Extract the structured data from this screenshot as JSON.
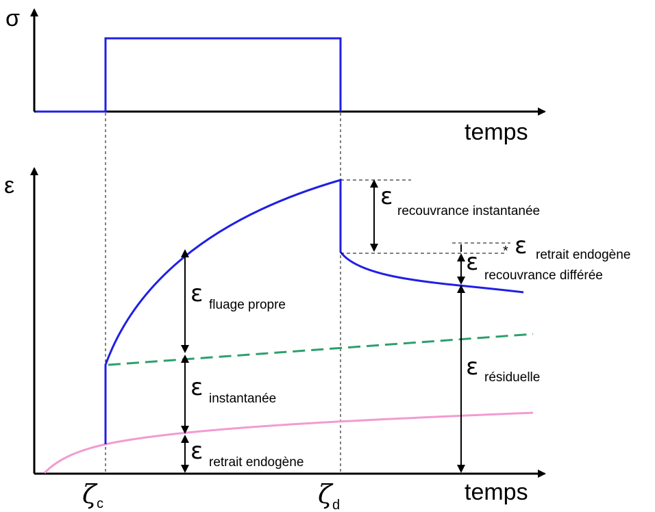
{
  "colors": {
    "stress_curve": "#1f1fe6",
    "strain_curve": "#1f1fe6",
    "dashed_instant": "#2e9e6e",
    "shrinkage_curve": "#f29bd0",
    "axes": "#000000"
  },
  "top_plot": {
    "y_axis_label": "σ",
    "x_axis_label": "temps"
  },
  "bottom_plot": {
    "y_axis_label": "ε",
    "x_axis_label": "temps"
  },
  "time_markers": {
    "load": {
      "symbol": "ζ",
      "subscript": "c"
    },
    "unload": {
      "symbol": "ζ",
      "subscript": "d"
    }
  },
  "annotations": [
    {
      "symbol": "ε",
      "label": "retrait endogène"
    },
    {
      "symbol": "ε",
      "label": "instantanée"
    },
    {
      "symbol": "ε",
      "label": "fluage propre"
    },
    {
      "symbol": "ε",
      "label": "recouvrance instantanée"
    },
    {
      "symbol": "ε",
      "label": "retrait endogène"
    },
    {
      "symbol": "ε",
      "label": "recouvrance différée"
    },
    {
      "symbol": "ε",
      "label": "résiduelle"
    }
  ],
  "asterisk": "*"
}
